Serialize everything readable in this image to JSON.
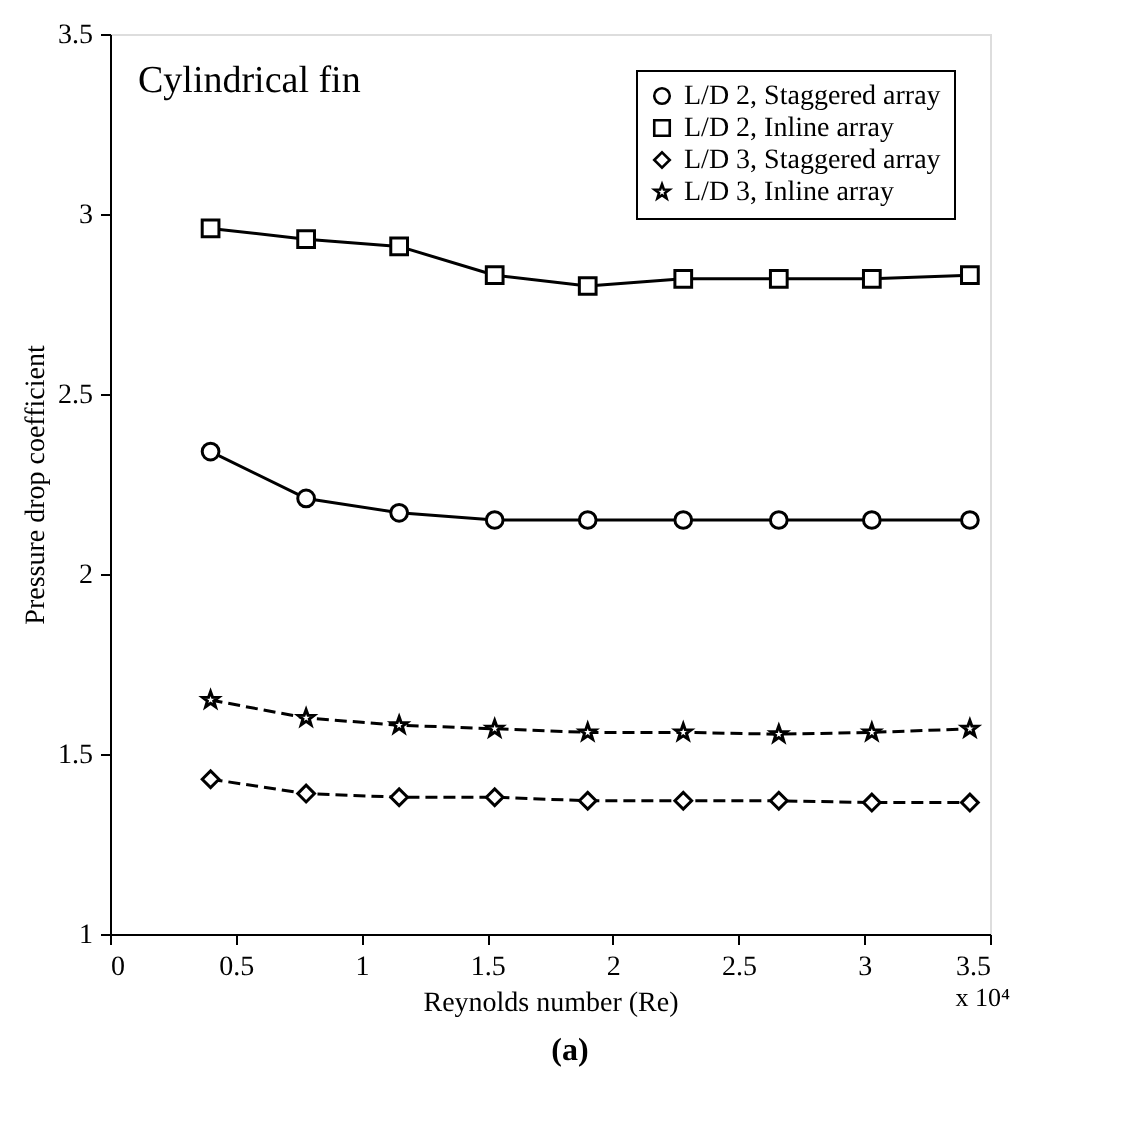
{
  "chart_data": {
    "type": "line",
    "xlabel": "Reynolds number (Re)",
    "ylabel": "Pressure drop coefficient",
    "x": [
      0.4,
      0.78,
      1.15,
      1.53,
      1.9,
      2.28,
      2.66,
      3.03,
      3.42
    ],
    "series": [
      {
        "name": "L/D 2, Staggered array",
        "color": "#000000",
        "marker": "circle",
        "line_style": "solid",
        "values": [
          2.34,
          2.21,
          2.17,
          2.15,
          2.15,
          2.15,
          2.15,
          2.15,
          2.15
        ]
      },
      {
        "name": "L/D 2, Inline array",
        "color": "#000000",
        "marker": "square",
        "line_style": "solid",
        "values": [
          2.96,
          2.93,
          2.91,
          2.83,
          2.8,
          2.82,
          2.82,
          2.82,
          2.83
        ]
      },
      {
        "name": "L/D 3, Staggered array",
        "color": "#000000",
        "marker": "diamond",
        "line_style": "dashed",
        "values": [
          1.43,
          1.39,
          1.38,
          1.38,
          1.37,
          1.37,
          1.37,
          1.365,
          1.365
        ]
      },
      {
        "name": "L/D 3, Inline array",
        "color": "#000000",
        "marker": "star",
        "line_style": "dashed",
        "values": [
          1.65,
          1.6,
          1.58,
          1.57,
          1.56,
          1.56,
          1.555,
          1.56,
          1.57
        ]
      }
    ],
    "xlim": [
      0,
      3.5
    ],
    "xticks": [
      0,
      0.5,
      1,
      1.5,
      2,
      2.5,
      3,
      3.5
    ],
    "ylim": [
      1,
      3.5
    ],
    "yticks": [
      1,
      1.5,
      2,
      2.5,
      3,
      3.5
    ],
    "grid": false,
    "legend": "top right",
    "annotations": [
      "Cylindrical fin",
      "x 10⁴",
      "(a)"
    ]
  }
}
